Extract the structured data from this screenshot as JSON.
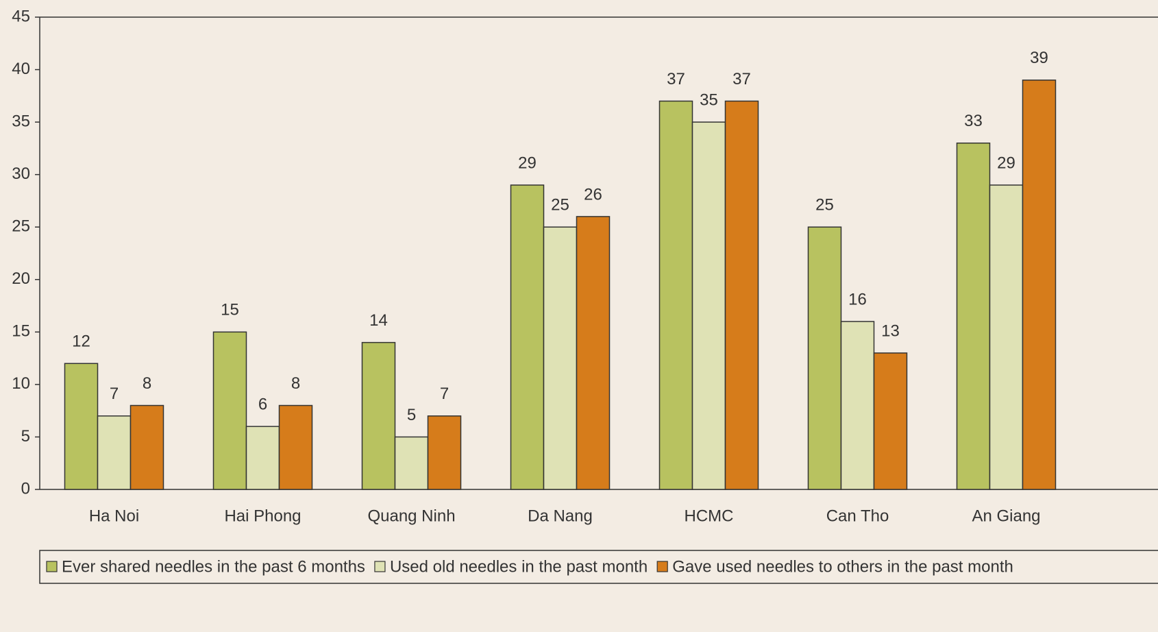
{
  "chart_data": {
    "type": "bar",
    "categories": [
      "Ha Noi",
      "Hai Phong",
      "Quang Ninh",
      "Da Nang",
      "HCMC",
      "Can Tho",
      "An Giang"
    ],
    "series": [
      {
        "name": "Ever shared needles in the past 6 months",
        "color": "#b8c260",
        "values": [
          12,
          15,
          14,
          29,
          37,
          25,
          33
        ]
      },
      {
        "name": "Used old needles in the past month",
        "color": "#dfe2b5",
        "values": [
          7,
          6,
          5,
          25,
          35,
          16,
          29
        ]
      },
      {
        "name": "Gave used needles to others in the past month",
        "color": "#d67c1b",
        "values": [
          8,
          8,
          7,
          26,
          37,
          13,
          39
        ]
      }
    ],
    "ylim": [
      0,
      45
    ],
    "yticks": [
      0,
      5,
      10,
      15,
      20,
      25,
      30,
      35,
      40,
      45
    ],
    "legend": "bottom"
  }
}
